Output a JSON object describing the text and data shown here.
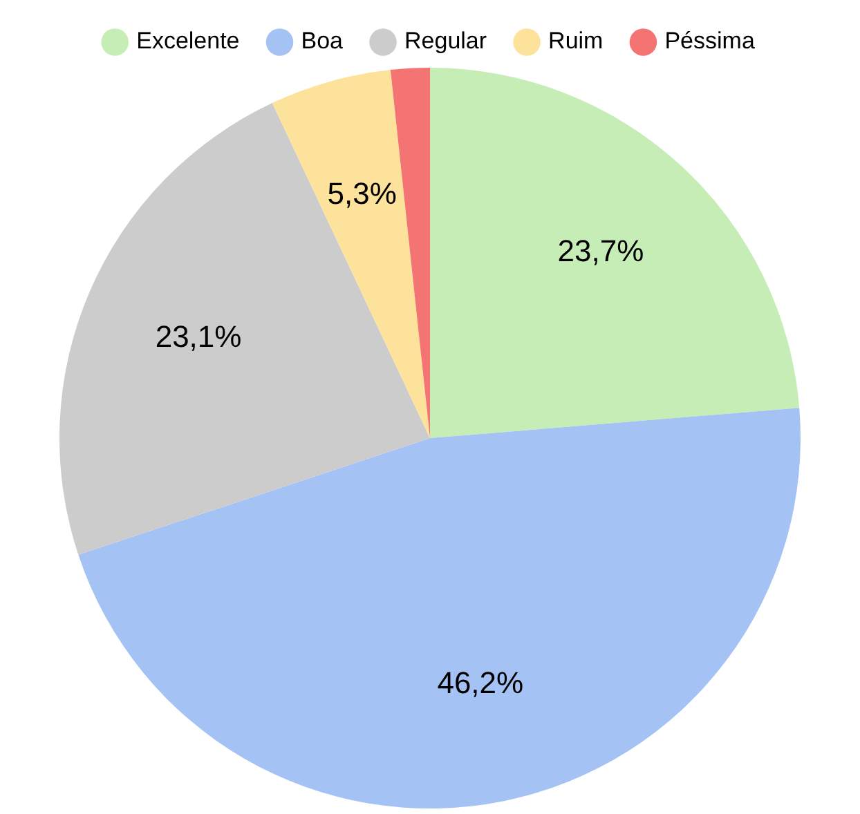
{
  "chart_data": {
    "type": "pie",
    "categories": [
      "Excelente",
      "Boa",
      "Regular",
      "Ruim",
      "Péssima"
    ],
    "values": [
      23.7,
      46.2,
      23.1,
      5.3,
      1.7
    ],
    "colors": [
      "#c6edb5",
      "#a4c2f4",
      "#cccccc",
      "#fde29c",
      "#f47373"
    ],
    "value_labels": [
      "23,7%",
      "46,2%",
      "23,1%",
      "5,3%",
      null
    ],
    "legend": "top"
  }
}
